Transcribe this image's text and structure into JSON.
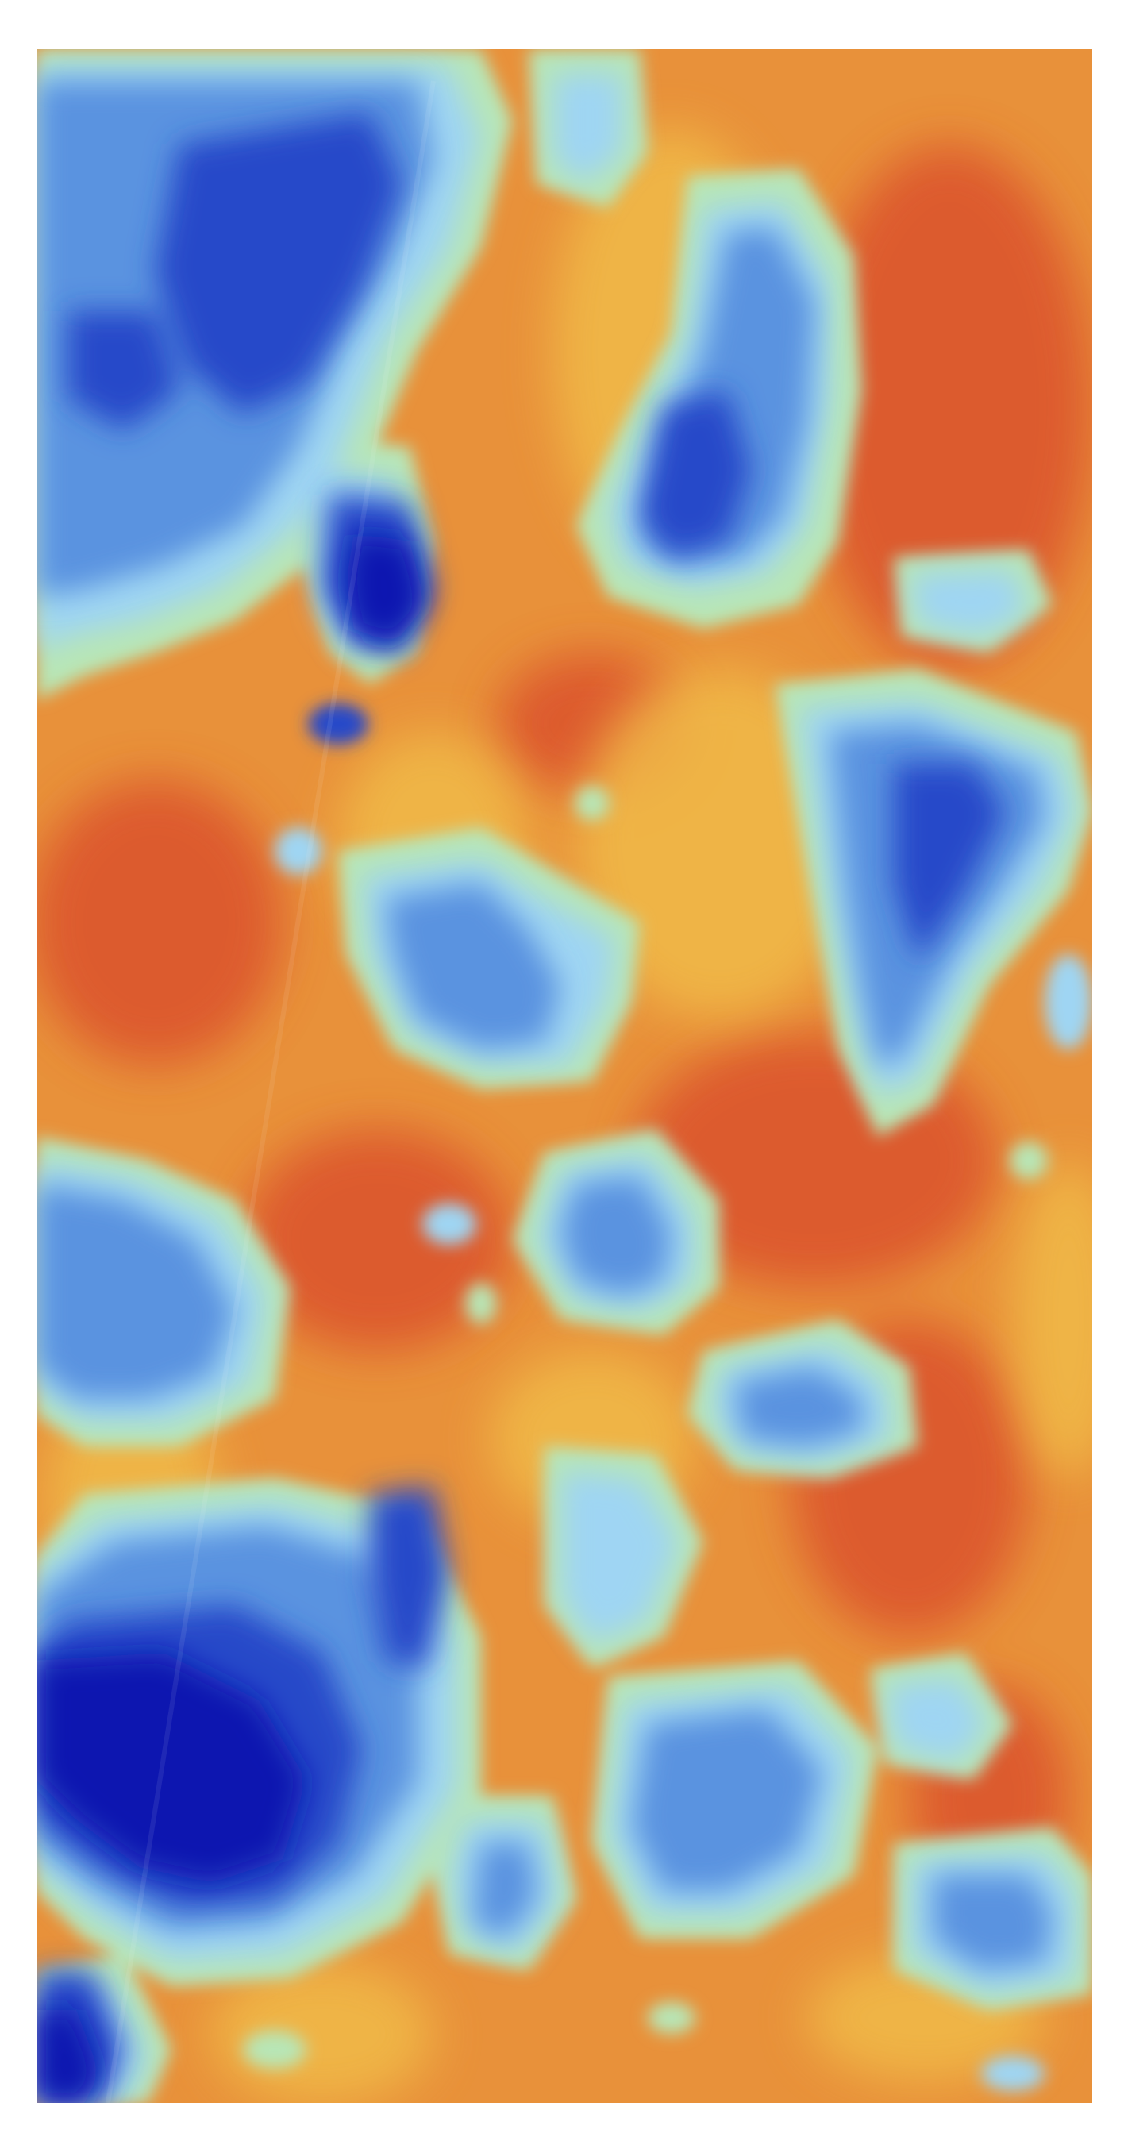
{
  "map": {
    "kind": "raster heatmap (false-color)",
    "colormap": [
      "#0f12b5",
      "#2f63d2",
      "#6aa6ee",
      "#a8dcf5",
      "#b6e6b4",
      "#efc94e",
      "#ee9a3a",
      "#e35a27",
      "#cf3a22"
    ],
    "colors": {
      "background": "#e8913a",
      "warm_mid": "#ea9a3c",
      "warm_hot": "#d9482a",
      "warm_light": "#f1bd48",
      "transition": "#b8e6b6",
      "cool_light": "#9fd5f3",
      "cool_mid": "#5a93e0",
      "cool_deep": "#2748c9",
      "cool_deepest": "#1114b0"
    },
    "has_colorbar": false,
    "has_axes": false
  }
}
